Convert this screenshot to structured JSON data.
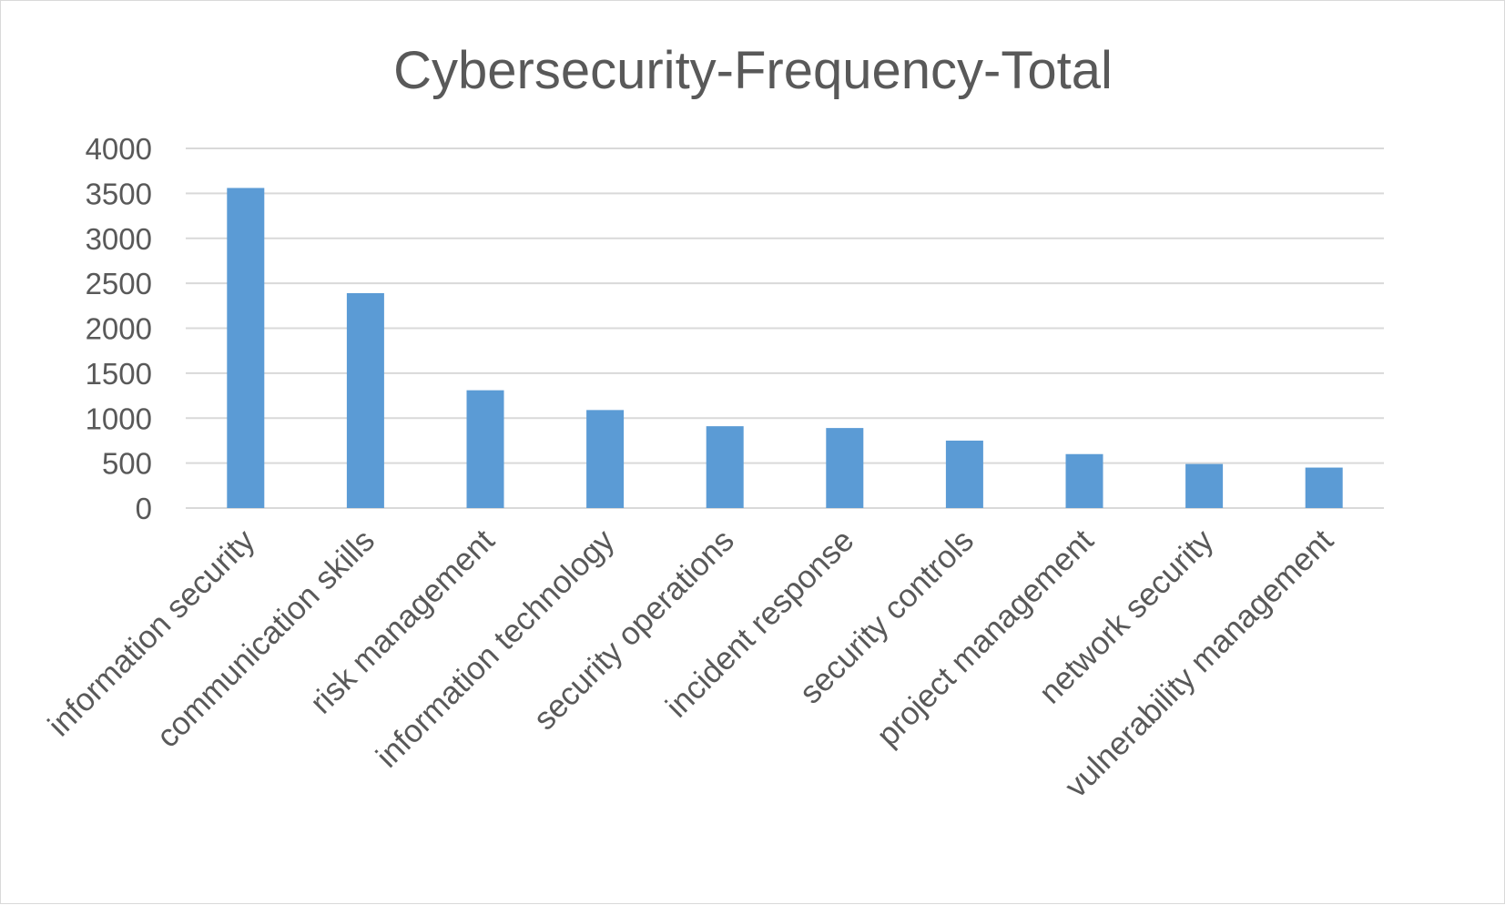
{
  "chart_data": {
    "type": "bar",
    "title": "Cybersecurity-Frequency-Total",
    "xlabel": "",
    "ylabel": "",
    "categories": [
      "information security",
      "communication skills",
      "risk management",
      "information technology",
      "security operations",
      "incident response",
      "security controls",
      "project management",
      "network security",
      "vulnerability management"
    ],
    "series": [
      {
        "values": [
          3560,
          2390,
          1310,
          1090,
          910,
          890,
          750,
          600,
          490,
          450
        ]
      }
    ],
    "ylim": [
      0,
      4000
    ],
    "yticks": [
      0,
      500,
      1000,
      1500,
      2000,
      2500,
      3000,
      3500,
      4000
    ],
    "grid": true,
    "legend": "none",
    "bar_color": "#5b9bd5",
    "text_color": "#595959",
    "grid_color": "#d9d9d9"
  }
}
